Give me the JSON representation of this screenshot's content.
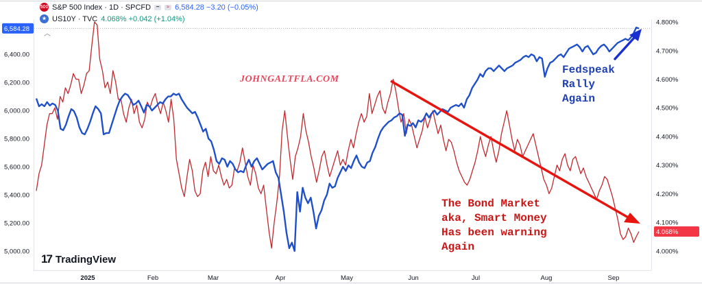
{
  "header": {
    "sp_badge": "500",
    "sp_title": "S&P 500 Index · 1D · SPCFD",
    "sp_values": "6,584.28 −3.20 (−0.05%)",
    "us_title": "US10Y · TVC",
    "us_values": "4.068% +0.042 (+1.04%)",
    "collapse_glyph": "︿"
  },
  "watermark": "JOHNGALTFLA.COM",
  "annotations": {
    "blue_lines": [
      "Fedspeak",
      "Rally",
      "Again"
    ],
    "red_lines": [
      "The Bond Market",
      "aka, Smart Money",
      "Has been warning",
      "Again"
    ]
  },
  "logo": {
    "mark": "17",
    "text": "TradingView"
  },
  "colors": {
    "sp500": "#1f50c9",
    "us10y": "#c1272d",
    "trend_arrow": "#e8140f",
    "rally_arrow": "#1a2fd0"
  },
  "chart_data": {
    "type": "line",
    "x_labels": [
      "2025",
      "Feb",
      "Mar",
      "Apr",
      "May",
      "Jun",
      "Jul",
      "Aug",
      "Sep"
    ],
    "left_axis": {
      "ticks": [
        "6,400.00",
        "6,200.00",
        "6,000.00",
        "5,800.00",
        "5,600.00",
        "5,400.00",
        "5,200.00",
        "5,000.00"
      ],
      "ylim": [
        4980,
        6640
      ]
    },
    "right_axis": {
      "ticks": [
        "4.800%",
        "4.700%",
        "4.600%",
        "4.500%",
        "4.400%",
        "4.300%",
        "4.200%",
        "4.100%",
        "4.000%"
      ],
      "ylim": [
        3.99,
        4.805
      ]
    },
    "last_left": "6,584.28",
    "last_right": "4.068%",
    "grid": false,
    "series": [
      {
        "name": "S&P 500 Index",
        "axis": "left",
        "values": [
          6086,
          6030,
          6045,
          6030,
          6060,
          6035,
          6050,
          6040,
          6000,
          5870,
          5860,
          5900,
          5960,
          6010,
          5995,
          5950,
          5880,
          5840,
          5830,
          5870,
          5920,
          5980,
          6030,
          6010,
          5980,
          5830,
          5840,
          5840,
          5900,
          5960,
          6020,
          6070,
          6100,
          6120,
          6110,
          6080,
          6040,
          6050,
          6070,
          6030,
          5985,
          6040,
          6030,
          6000,
          6020,
          6040,
          6060,
          6050,
          6080,
          6100,
          6100,
          6120,
          6110,
          6120,
          6080,
          6050,
          6020,
          6000,
          5980,
          5990,
          5950,
          5900,
          5850,
          5870,
          5800,
          5780,
          5720,
          5640,
          5620,
          5660,
          5650,
          5600,
          5640,
          5620,
          5580,
          5560,
          5570,
          5560,
          5610,
          5650,
          5600,
          5640,
          5660,
          5620,
          5580,
          5600,
          5620,
          5630,
          5640,
          5560,
          5520,
          5400,
          5280,
          5130,
          5020,
          5060,
          5000,
          5420,
          5280,
          5450,
          5380,
          5340,
          5380,
          5280,
          5160,
          5250,
          5290,
          5360,
          5400,
          5480,
          5450,
          5460,
          5520,
          5560,
          5600,
          5570,
          5610,
          5590,
          5640,
          5680,
          5630,
          5600,
          5590,
          5630,
          5640,
          5700,
          5740,
          5800,
          5850,
          5880,
          5900,
          5920,
          5930,
          5950,
          5960,
          5980,
          5970,
          5820,
          5900,
          5890,
          5910,
          5880,
          5930,
          5920,
          5940,
          5980,
          5950,
          5980,
          6000,
          5970,
          5990,
          6010,
          6000,
          5990,
          6020,
          6030,
          6040,
          6030,
          6050,
          6020,
          6080,
          6110,
          6160,
          6190,
          6220,
          6260,
          6240,
          6280,
          6300,
          6300,
          6280,
          6300,
          6320,
          6300,
          6280,
          6300,
          6310,
          6320,
          6340,
          6350,
          6360,
          6380,
          6390,
          6380,
          6400,
          6390,
          6350,
          6380,
          6370,
          6240,
          6300,
          6340,
          6350,
          6370,
          6390,
          6400,
          6380,
          6410,
          6440,
          6450,
          6460,
          6470,
          6450,
          6420,
          6450,
          6460,
          6430,
          6400,
          6410,
          6440,
          6460,
          6470,
          6450,
          6420,
          6440,
          6460,
          6480,
          6490,
          6500,
          6510,
          6500,
          6520,
          6550,
          6590,
          6584
        ]
      },
      {
        "name": "US10Y",
        "axis": "right",
        "values": [
          4.21,
          4.27,
          4.3,
          4.37,
          4.44,
          4.48,
          4.48,
          4.5,
          4.46,
          4.54,
          4.52,
          4.57,
          4.55,
          4.58,
          4.62,
          4.6,
          4.6,
          4.55,
          4.58,
          4.62,
          4.63,
          4.72,
          4.8,
          4.79,
          4.67,
          4.63,
          4.57,
          4.59,
          4.55,
          4.63,
          4.59,
          4.53,
          4.53,
          4.48,
          4.45,
          4.5,
          4.53,
          4.48,
          4.51,
          4.45,
          4.43,
          4.46,
          4.52,
          4.5,
          4.53,
          4.55,
          4.51,
          4.48,
          4.52,
          4.49,
          4.45,
          4.53,
          4.46,
          4.32,
          4.27,
          4.22,
          4.19,
          4.26,
          4.32,
          4.28,
          4.21,
          4.19,
          4.2,
          4.28,
          4.31,
          4.26,
          4.33,
          4.28,
          4.27,
          4.3,
          4.26,
          4.23,
          4.25,
          4.22,
          4.23,
          4.29,
          4.28,
          4.31,
          4.36,
          4.31,
          4.26,
          4.23,
          4.3,
          4.27,
          4.22,
          4.2,
          4.23,
          4.15,
          4.07,
          4.01,
          4.1,
          4.17,
          4.26,
          4.42,
          4.49,
          4.4,
          4.32,
          4.25,
          4.33,
          4.36,
          4.4,
          4.48,
          4.42,
          4.38,
          4.33,
          4.29,
          4.24,
          4.28,
          4.33,
          4.35,
          4.3,
          4.26,
          4.29,
          4.32,
          4.35,
          4.3,
          4.32,
          4.3,
          4.35,
          4.39,
          4.36,
          4.41,
          4.45,
          4.48,
          4.45,
          4.47,
          4.55,
          4.48,
          4.51,
          4.54,
          4.56,
          4.5,
          4.48,
          4.52,
          4.55,
          4.6,
          4.56,
          4.5,
          4.45,
          4.48,
          4.41,
          4.46,
          4.44,
          4.4,
          4.36,
          4.39,
          4.42,
          4.47,
          4.43,
          4.46,
          4.49,
          4.45,
          4.41,
          4.44,
          4.39,
          4.35,
          4.39,
          4.38,
          4.35,
          4.31,
          4.28,
          4.26,
          4.24,
          4.23,
          4.25,
          4.28,
          4.31,
          4.35,
          4.4,
          4.36,
          4.33,
          4.37,
          4.4,
          4.35,
          4.31,
          4.35,
          4.41,
          4.45,
          4.49,
          4.44,
          4.39,
          4.35,
          4.39,
          4.37,
          4.33,
          4.35,
          4.37,
          4.39,
          4.41,
          4.37,
          4.33,
          4.29,
          4.25,
          4.23,
          4.2,
          4.22,
          4.26,
          4.3,
          4.28,
          4.32,
          4.34,
          4.3,
          4.28,
          4.32,
          4.33,
          4.3,
          4.27,
          4.29,
          4.26,
          4.24,
          4.22,
          4.2,
          4.18,
          4.21,
          4.23,
          4.26,
          4.25,
          4.22,
          4.19,
          4.15,
          4.11,
          4.06,
          4.04,
          4.05,
          4.08,
          4.06,
          4.03,
          4.05,
          4.068
        ]
      }
    ]
  }
}
